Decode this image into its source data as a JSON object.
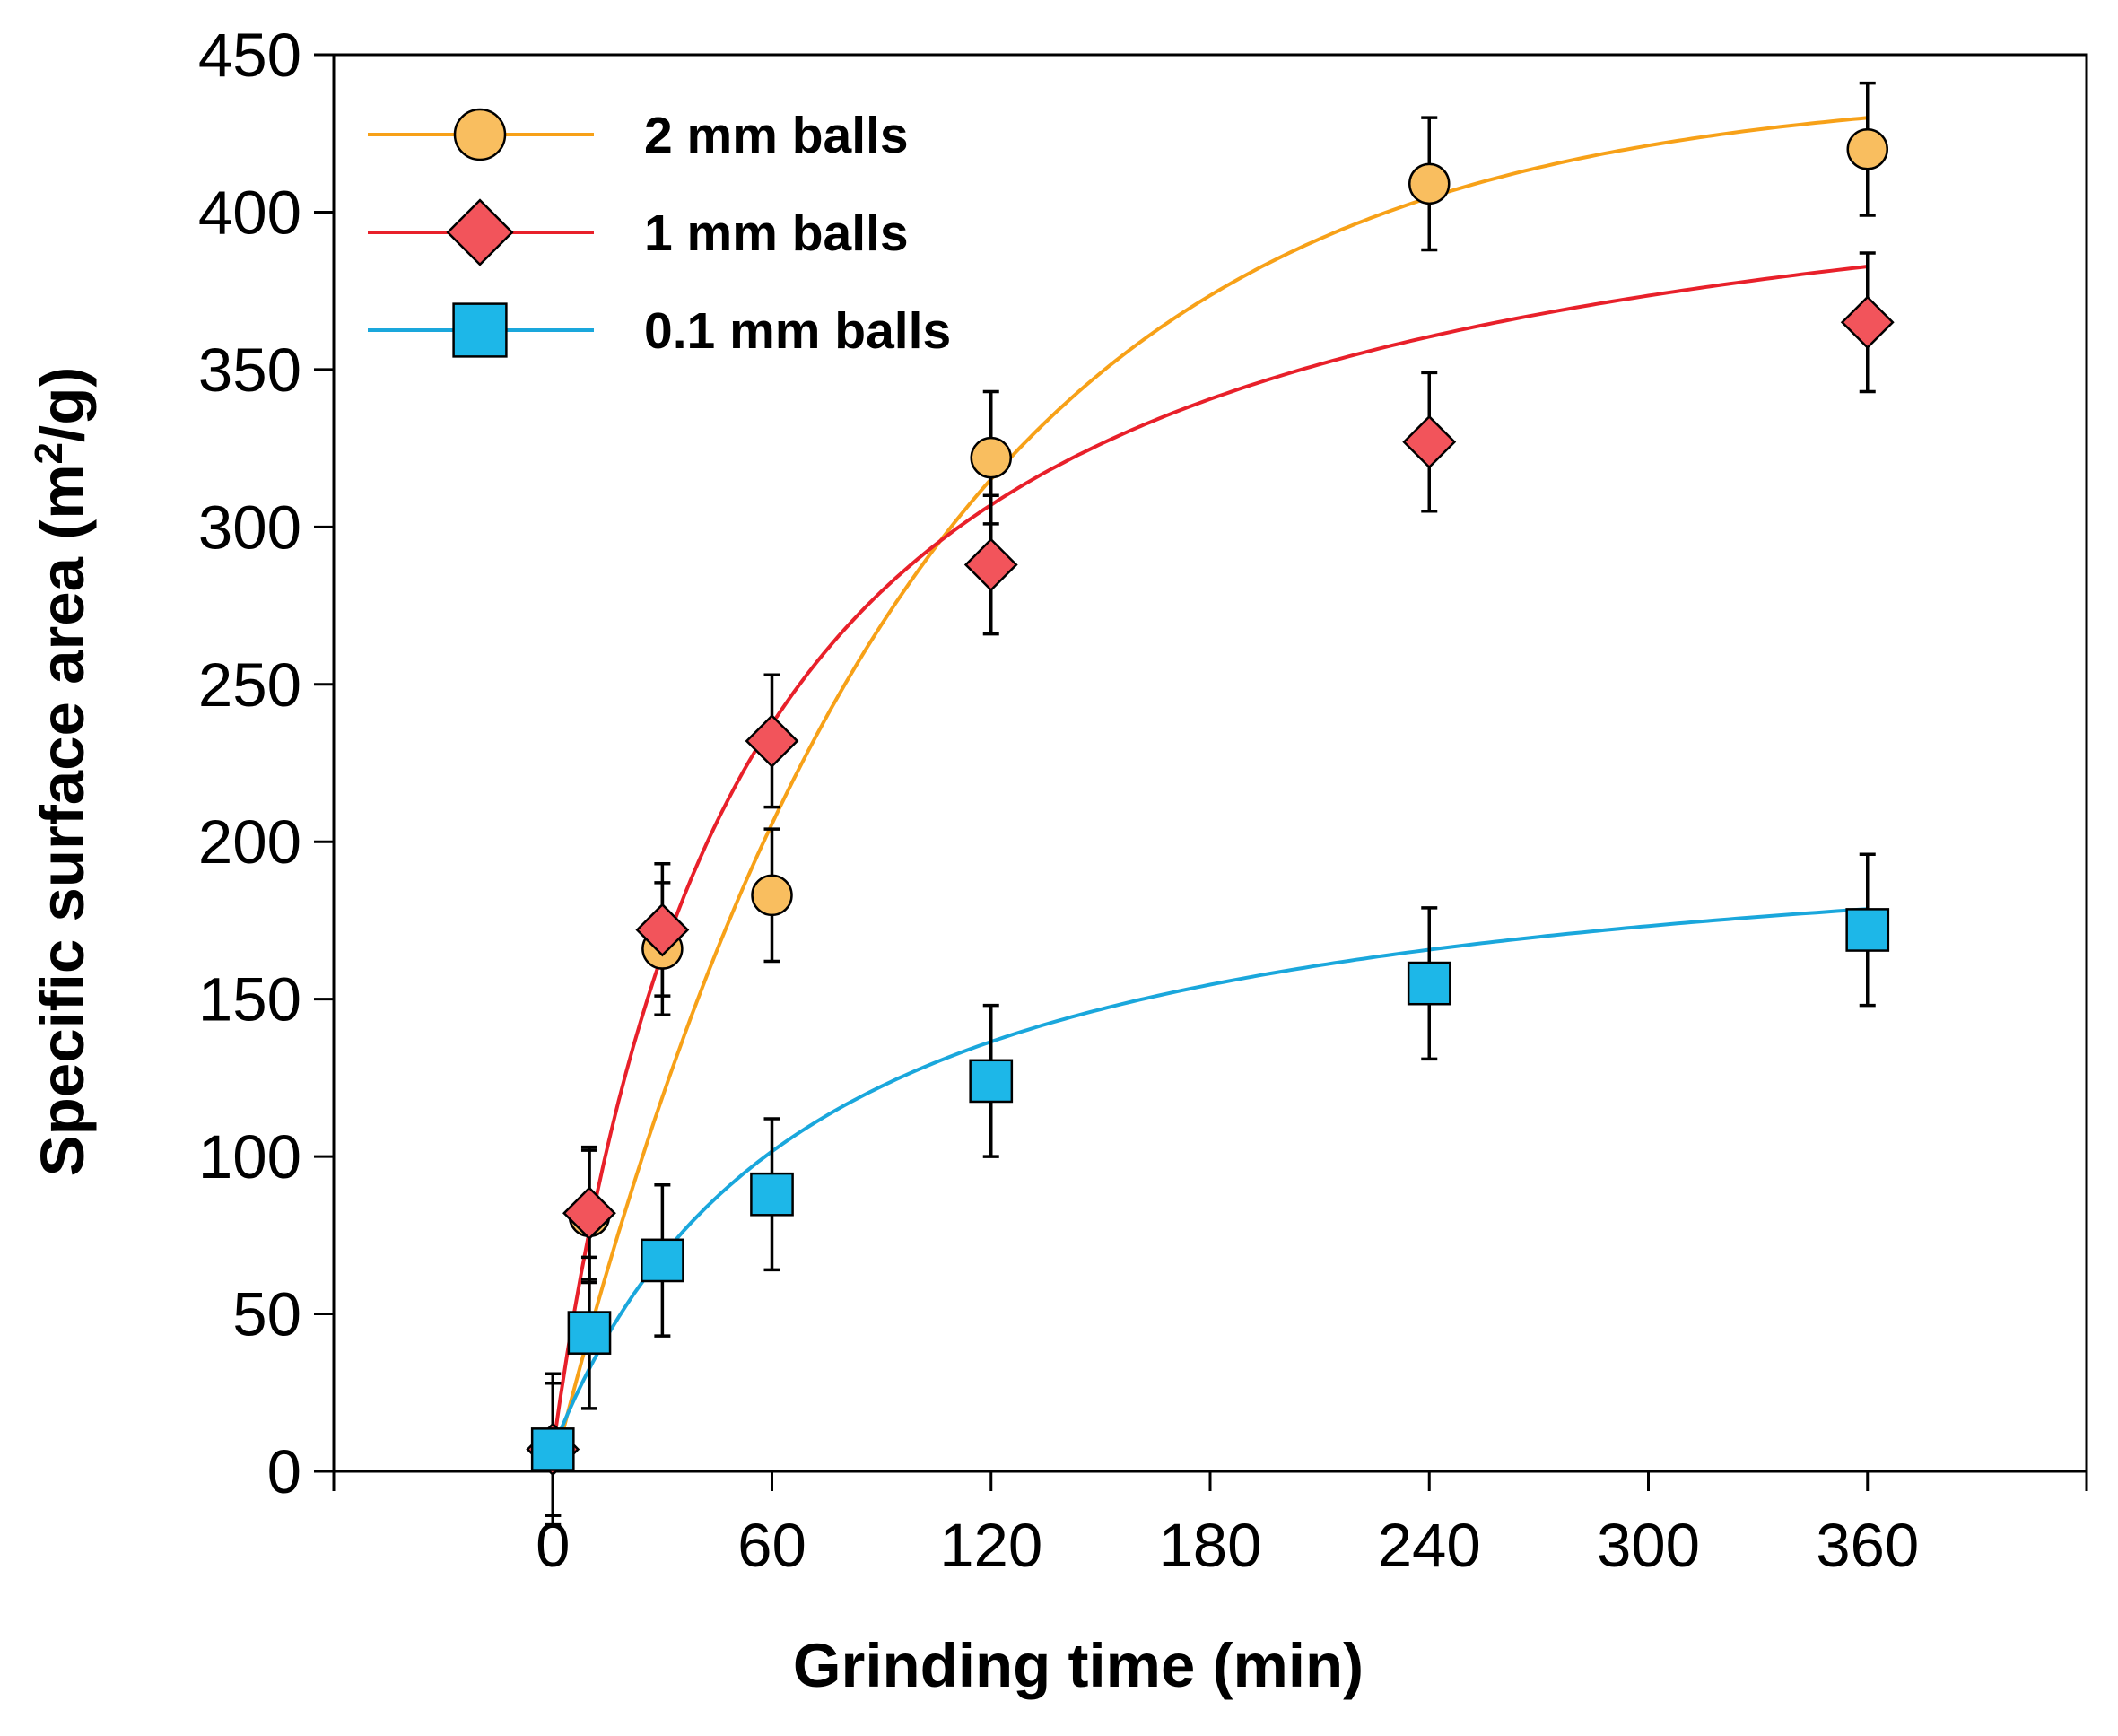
{
  "chart_data": {
    "type": "scatter",
    "xlabel": "Grinding time (min)",
    "ylabel_main": "Specific surface area (m",
    "ylabel_sup": "2",
    "ylabel_tail": "/g)",
    "xlim": [
      -60,
      420
    ],
    "ylim": [
      0,
      450
    ],
    "x_ticks": [
      0,
      60,
      120,
      180,
      240,
      300,
      360
    ],
    "y_ticks": [
      0,
      50,
      100,
      150,
      200,
      250,
      300,
      350,
      400,
      450
    ],
    "legend_position": "top-left",
    "series": [
      {
        "name": "2 mm balls",
        "marker": "circle",
        "color": "#F9BE5F",
        "line_color": "#F7A118",
        "points": [
          {
            "x": 0,
            "y": 7,
            "err": 21
          },
          {
            "x": 10,
            "y": 81,
            "err": 21
          },
          {
            "x": 30,
            "y": 166,
            "err": 21
          },
          {
            "x": 60,
            "y": 183,
            "err": 21
          },
          {
            "x": 120,
            "y": 322,
            "err": 21
          },
          {
            "x": 240,
            "y": 409,
            "err": 21
          },
          {
            "x": 360,
            "y": 420,
            "err": 21
          }
        ],
        "fit": {
          "model": "exp",
          "a": 440,
          "k": 0.0105,
          "c": 0
        }
      },
      {
        "name": "1 mm balls",
        "marker": "diamond",
        "color": "#F2545B",
        "line_color": "#E8202A",
        "points": [
          {
            "x": 0,
            "y": 7,
            "err": 21
          },
          {
            "x": 10,
            "y": 82,
            "err": 21
          },
          {
            "x": 30,
            "y": 172,
            "err": 21
          },
          {
            "x": 60,
            "y": 232,
            "err": 21
          },
          {
            "x": 120,
            "y": 288,
            "err": 22
          },
          {
            "x": 240,
            "y": 327,
            "err": 22
          },
          {
            "x": 360,
            "y": 365,
            "err": 22
          }
        ],
        "fit": {
          "model": "hyper",
          "a": 430,
          "b": 52,
          "c": 7
        }
      },
      {
        "name": "0.1 mm balls",
        "marker": "square",
        "color": "#1DB7E8",
        "line_color": "#1AA7DC",
        "points": [
          {
            "x": 0,
            "y": 7,
            "err": 24
          },
          {
            "x": 10,
            "y": 44,
            "err": 24
          },
          {
            "x": 30,
            "y": 67,
            "err": 24
          },
          {
            "x": 60,
            "y": 88,
            "err": 24
          },
          {
            "x": 120,
            "y": 124,
            "err": 24
          },
          {
            "x": 240,
            "y": 155,
            "err": 24
          },
          {
            "x": 360,
            "y": 172,
            "err": 24
          }
        ],
        "fit": {
          "model": "hyper",
          "a": 205,
          "b": 70,
          "c": 7
        }
      }
    ]
  }
}
